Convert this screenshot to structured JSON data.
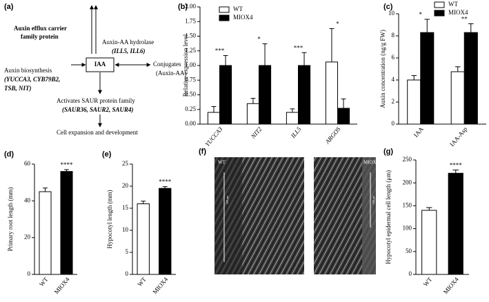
{
  "diagram": {
    "panel": "(a)",
    "efflux": [
      "Auxin efflux carrier",
      "family protein"
    ],
    "hydrolase": "Auxin-AA hydrolase",
    "hydrolase_genes": "(ILL5, ILL6)",
    "center": "IAA",
    "biosynthesis": "Auxin biosynthesis",
    "biosynthesis_genes": [
      "(YUCCA3, CYB79B2,",
      "TSB, NIT)"
    ],
    "conjugates": "Conjugates",
    "conjugates_detail": "(Auxin-AA)",
    "saur": "Activates SAUR protein family",
    "saur_genes": "(SAUR36, SAUR2, SAUR4)",
    "result": "Cell expansion and development"
  },
  "image": {
    "panel": "(f)",
    "left": "WT",
    "right": "MIOX4",
    "scale_bar": "100 μm"
  },
  "chart_data": [
    {
      "type": "bar",
      "panel": "(b)",
      "ylabel": "Relative expression level",
      "categories": [
        "YUCCA3",
        "NIT2",
        "ILL5",
        "ARGOS"
      ],
      "series": [
        {
          "name": "WT",
          "color": "#ffffff",
          "values": [
            0.2,
            0.35,
            0.2,
            1.06
          ],
          "errors": [
            0.1,
            0.09,
            0.06,
            0.57
          ]
        },
        {
          "name": "MIOX4",
          "color": "#000000",
          "values": [
            1.0,
            1.0,
            1.0,
            0.27
          ],
          "errors": [
            0.17,
            0.37,
            0.22,
            0.16
          ]
        }
      ],
      "annotations": [
        "***",
        "*",
        "***",
        "*"
      ],
      "ylim": [
        0,
        2
      ],
      "yticks": [
        {
          "value": 0,
          "label": "0.00"
        },
        {
          "value": 0.25,
          "label": "0.25"
        },
        {
          "value": 0.5,
          "label": "0.50"
        },
        {
          "value": 0.75,
          "label": "0.75"
        },
        {
          "value": 1,
          "label": "1.00"
        },
        {
          "value": 1.25,
          "label": "1.25"
        },
        {
          "value": 1.5,
          "label": "1.50"
        },
        {
          "value": 1.75,
          "label": "1.75"
        },
        {
          "value": 2,
          "label": "2.00"
        }
      ]
    },
    {
      "type": "bar",
      "panel": "(c)",
      "ylabel": "Auxin concentration (ng/g FW)",
      "categories": [
        "IAA",
        "IAA-Asp"
      ],
      "series": [
        {
          "name": "WT",
          "color": "#ffffff",
          "values": [
            4.0,
            4.75
          ],
          "errors": [
            0.4,
            0.45
          ]
        },
        {
          "name": "MIOX4",
          "color": "#000000",
          "values": [
            8.3,
            8.3
          ],
          "errors": [
            1.2,
            0.8
          ]
        }
      ],
      "annotations": [
        "*",
        "**"
      ],
      "ylim": [
        0,
        10
      ],
      "yticks": [
        0,
        2,
        4,
        6,
        8,
        10
      ]
    },
    {
      "type": "bar",
      "panel": "(d)",
      "ylabel": "Primary root length (mm)",
      "categories": [
        "WT",
        "MIOX4"
      ],
      "values": [
        45,
        56
      ],
      "errors": [
        2,
        1
      ],
      "colors": [
        "#ffffff",
        "#000000"
      ],
      "annotations": [
        null,
        "****"
      ],
      "ylim": [
        0,
        60
      ],
      "yticks": [
        0,
        20,
        40,
        60
      ]
    },
    {
      "type": "bar",
      "panel": "(e)",
      "ylabel": "Hypocotyl length (mm)",
      "categories": [
        "WT",
        "MIOX4"
      ],
      "values": [
        16,
        19.5
      ],
      "errors": [
        0.6,
        0.4
      ],
      "colors": [
        "#ffffff",
        "#000000"
      ],
      "annotations": [
        null,
        "****"
      ],
      "ylim": [
        0,
        25
      ],
      "yticks": [
        0,
        5,
        10,
        15,
        20,
        25
      ]
    },
    {
      "type": "bar",
      "panel": "(g)",
      "ylabel": "Hypocotyl epidermal cell length (μm)",
      "categories": [
        "WT",
        "MIOX4"
      ],
      "values": [
        140,
        221
      ],
      "errors": [
        6,
        7
      ],
      "colors": [
        "#ffffff",
        "#000000"
      ],
      "annotations": [
        null,
        "****"
      ],
      "ylim": [
        0,
        250
      ],
      "yticks": [
        0,
        50,
        100,
        150,
        200,
        250
      ]
    }
  ]
}
